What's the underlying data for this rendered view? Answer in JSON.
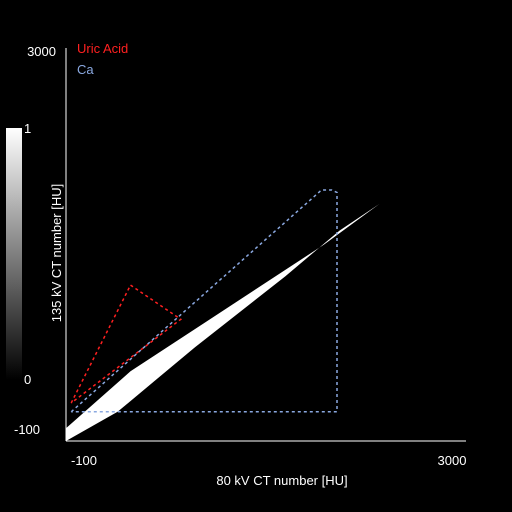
{
  "chart_data": {
    "type": "scatter",
    "title": "",
    "xlabel": "80 kV CT number [HU]",
    "ylabel": "135 kV CT number [HU]",
    "xlim": [
      -100,
      3000
    ],
    "ylim": [
      -100,
      3000
    ],
    "x_ticks": [
      "-100",
      "3000"
    ],
    "y_ticks": [
      "3000",
      "-100"
    ],
    "grid": false,
    "legend_position": "top-left",
    "legend": [
      {
        "name": "Uric Acid",
        "color": "#ff2020"
      },
      {
        "name": "Ca",
        "color": "#8aa8e0"
      }
    ],
    "colorbar": {
      "max_label": "1",
      "min_label": "0",
      "low_label": "-100",
      "colormap": "gray"
    },
    "regions": [
      {
        "name": "Uric Acid",
        "style": "dashed",
        "color": "#ff2020",
        "points": [
          [
            -60,
            200
          ],
          [
            400,
            1130
          ],
          [
            790,
            860
          ],
          [
            -60,
            200
          ]
        ]
      },
      {
        "name": "Ca",
        "style": "dashed",
        "color": "#8aa8e0",
        "points": [
          [
            -60,
            130
          ],
          [
            1880,
            1880
          ],
          [
            1960,
            1880
          ],
          [
            2000,
            1860
          ],
          [
            2000,
            130
          ],
          [
            -60,
            130
          ]
        ]
      }
    ],
    "density_band": {
      "color": "#ffffff",
      "points": [
        [
          -100,
          0
        ],
        [
          400,
          450
        ],
        [
          1000,
          850
        ],
        [
          1900,
          1450
        ],
        [
          2330,
          1770
        ],
        [
          2020,
          1560
        ],
        [
          1600,
          1200
        ],
        [
          900,
          640
        ],
        [
          300,
          130
        ],
        [
          -100,
          -100
        ]
      ]
    }
  }
}
